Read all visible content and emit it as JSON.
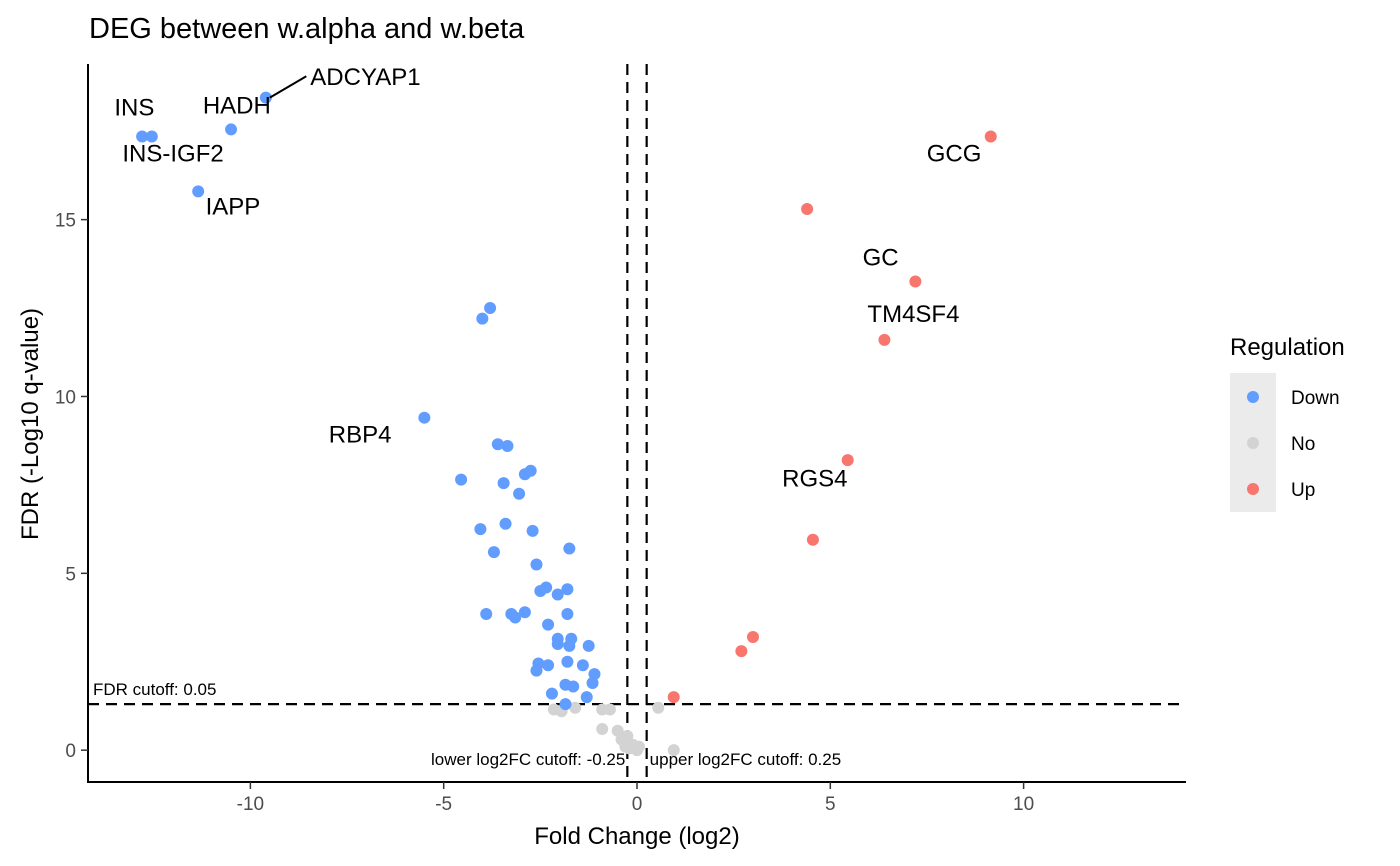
{
  "chart_data": {
    "type": "scatter",
    "title": "DEG between w.alpha and w.beta",
    "xlabel": "Fold Change (log2)",
    "ylabel": "FDR (-Log10 q-value)",
    "xlim": [
      -14.2,
      14.2
    ],
    "ylim": [
      -0.9,
      19.4
    ],
    "xticks": [
      -10,
      -5,
      0,
      5,
      10
    ],
    "yticks": [
      0,
      5,
      10,
      15
    ],
    "grid": false,
    "legend": {
      "title": "Regulation",
      "position": "right",
      "items": [
        {
          "name": "Down",
          "color": "#619CFF"
        },
        {
          "name": "No",
          "color": "#D3D3D3"
        },
        {
          "name": "Up",
          "color": "#F8766D"
        }
      ]
    },
    "cutoffs": {
      "fdr_label": "FDR cutoff: 0.05",
      "fdr_y": 1.301,
      "lower_label": "lower log2FC cutoff: -0.25",
      "lower_x": -0.25,
      "upper_label": "upper log2FC cutoff: 0.25",
      "upper_x": 0.25
    },
    "series": [
      {
        "name": "Down",
        "color": "#619CFF",
        "points": [
          [
            -9.6,
            18.45
          ],
          [
            -10.5,
            17.55
          ],
          [
            -12.8,
            17.35
          ],
          [
            -12.55,
            17.35
          ],
          [
            -11.35,
            15.8
          ],
          [
            -3.8,
            12.5
          ],
          [
            -4.0,
            12.2
          ],
          [
            -5.5,
            9.4
          ],
          [
            -3.6,
            8.65
          ],
          [
            -3.35,
            8.6
          ],
          [
            -2.75,
            7.9
          ],
          [
            -2.9,
            7.8
          ],
          [
            -4.55,
            7.65
          ],
          [
            -3.45,
            7.55
          ],
          [
            -3.05,
            7.25
          ],
          [
            -4.05,
            6.25
          ],
          [
            -3.4,
            6.4
          ],
          [
            -2.7,
            6.2
          ],
          [
            -3.7,
            5.6
          ],
          [
            -1.75,
            5.7
          ],
          [
            -2.6,
            5.25
          ],
          [
            -2.35,
            4.6
          ],
          [
            -1.8,
            4.55
          ],
          [
            -2.5,
            4.5
          ],
          [
            -2.05,
            4.4
          ],
          [
            -3.9,
            3.85
          ],
          [
            -3.25,
            3.85
          ],
          [
            -2.9,
            3.9
          ],
          [
            -1.8,
            3.85
          ],
          [
            -3.15,
            3.75
          ],
          [
            -2.3,
            3.55
          ],
          [
            -2.05,
            3.15
          ],
          [
            -1.7,
            3.15
          ],
          [
            -1.25,
            2.95
          ],
          [
            -2.05,
            3.0
          ],
          [
            -1.75,
            2.95
          ],
          [
            -2.55,
            2.45
          ],
          [
            -2.3,
            2.4
          ],
          [
            -1.8,
            2.5
          ],
          [
            -1.4,
            2.4
          ],
          [
            -2.6,
            2.25
          ],
          [
            -1.1,
            2.15
          ],
          [
            -1.85,
            1.85
          ],
          [
            -1.65,
            1.8
          ],
          [
            -1.15,
            1.9
          ],
          [
            -2.2,
            1.6
          ],
          [
            -1.3,
            1.5
          ],
          [
            -1.85,
            1.3
          ]
        ]
      },
      {
        "name": "No",
        "color": "#D3D3D3",
        "points": [
          [
            -2.15,
            1.15
          ],
          [
            -1.95,
            1.1
          ],
          [
            -1.6,
            1.2
          ],
          [
            -0.9,
            1.15
          ],
          [
            -0.7,
            1.15
          ],
          [
            0.55,
            1.2
          ],
          [
            -0.9,
            0.6
          ],
          [
            -0.5,
            0.55
          ],
          [
            -0.25,
            0.4
          ],
          [
            -0.4,
            0.3
          ],
          [
            -0.1,
            0.15
          ],
          [
            -0.2,
            0.05
          ],
          [
            0.0,
            0.0
          ],
          [
            0.05,
            0.1
          ],
          [
            -0.3,
            0.1
          ],
          [
            0.95,
            0.0
          ]
        ]
      },
      {
        "name": "Up",
        "color": "#F8766D",
        "points": [
          [
            9.15,
            17.35
          ],
          [
            4.4,
            15.3
          ],
          [
            7.2,
            13.25
          ],
          [
            6.4,
            11.6
          ],
          [
            5.45,
            8.2
          ],
          [
            4.55,
            5.95
          ],
          [
            3.0,
            3.2
          ],
          [
            2.7,
            2.8
          ],
          [
            0.95,
            1.5
          ]
        ]
      }
    ],
    "annotations": [
      {
        "text": "ADCYAP1",
        "x": -9.6,
        "y": 18.45,
        "lx": -8.45,
        "ly": 18.8,
        "anchor": "start",
        "line": true
      },
      {
        "text": "INS",
        "x": -12.8,
        "y": 17.35,
        "lx": -13.0,
        "ly": 17.95,
        "anchor": "middle",
        "line": false
      },
      {
        "text": "HADH",
        "x": -10.5,
        "y": 17.55,
        "lx": -10.35,
        "ly": 18.0,
        "anchor": "middle",
        "line": false
      },
      {
        "text": "INS-IGF2",
        "x": -12.55,
        "y": 17.35,
        "lx": -12.0,
        "ly": 16.65,
        "anchor": "middle",
        "line": false
      },
      {
        "text": "IAPP",
        "x": -11.35,
        "y": 15.8,
        "lx": -10.45,
        "ly": 15.15,
        "anchor": "middle",
        "line": false
      },
      {
        "text": "GCG",
        "x": 9.15,
        "y": 17.35,
        "lx": 8.2,
        "ly": 16.65,
        "anchor": "middle",
        "line": false
      },
      {
        "text": "GC",
        "x": 7.2,
        "y": 13.25,
        "lx": 6.3,
        "ly": 13.7,
        "anchor": "middle",
        "line": false
      },
      {
        "text": "TM4SF4",
        "x": 6.4,
        "y": 11.6,
        "lx": 7.15,
        "ly": 12.1,
        "anchor": "middle",
        "line": false
      },
      {
        "text": "RBP4",
        "x": -5.5,
        "y": 9.4,
        "lx": -6.35,
        "ly": 8.7,
        "anchor": "end",
        "line": false
      },
      {
        "text": "RGS4",
        "x": 5.45,
        "y": 8.2,
        "lx": 4.6,
        "ly": 7.45,
        "anchor": "middle",
        "line": false
      }
    ]
  }
}
